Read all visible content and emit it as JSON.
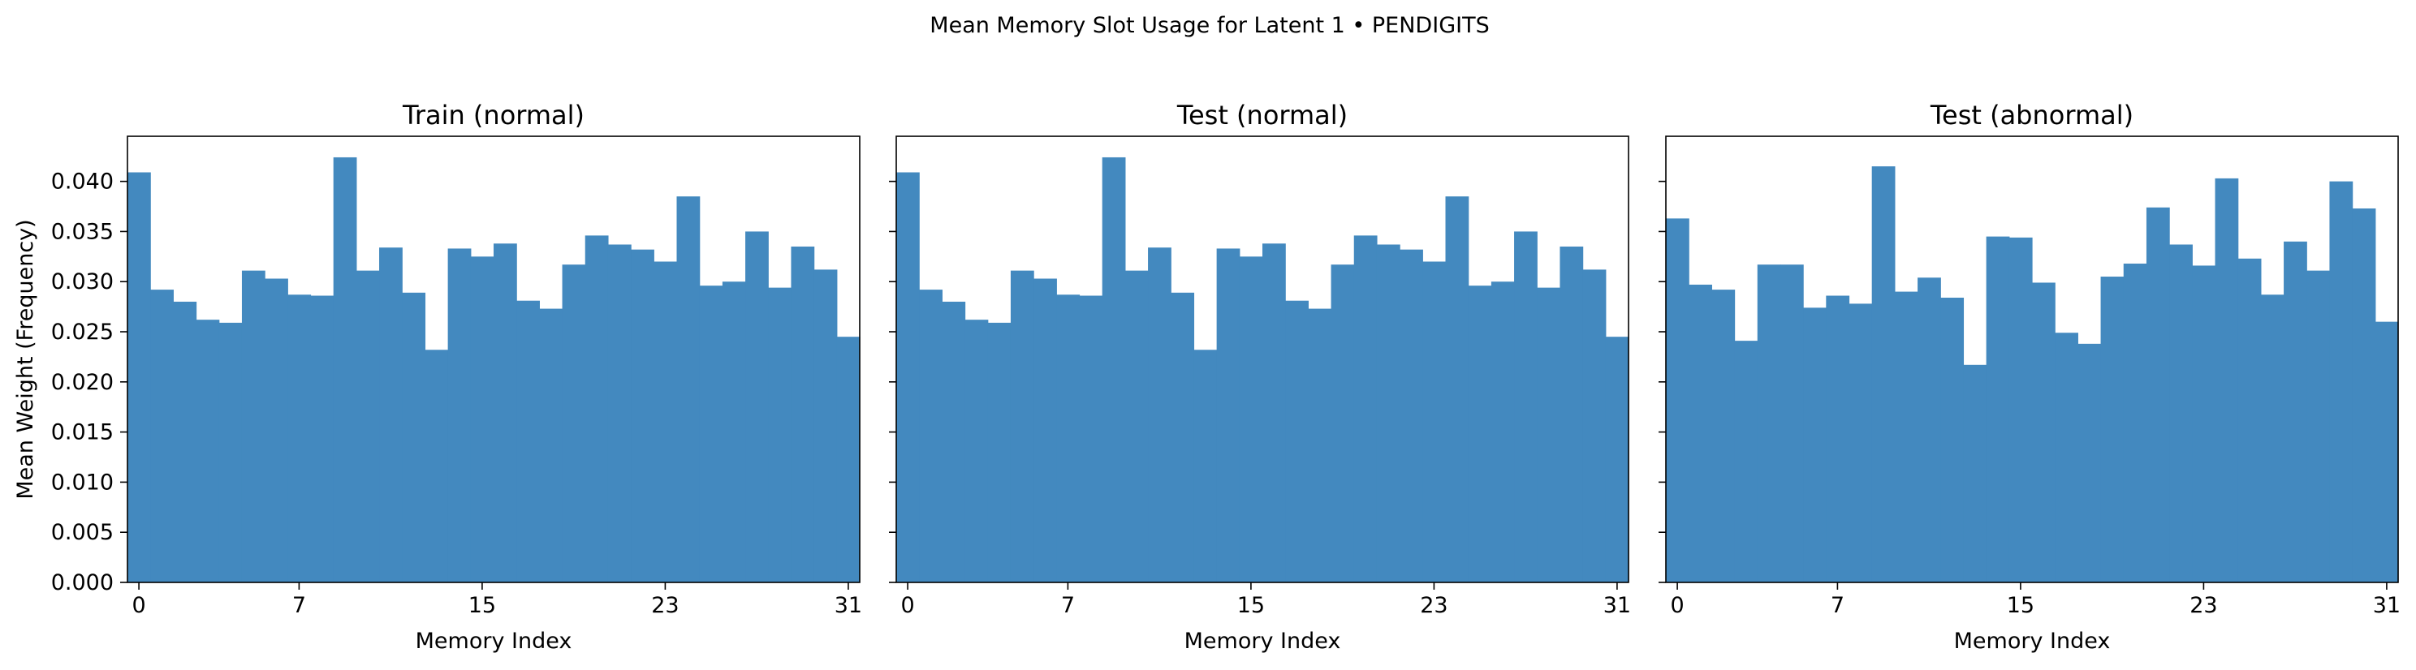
{
  "title": "Mean Memory Slot Usage for Latent 1 • PENDIGITS",
  "colors": {
    "bar": "#4389bf",
    "axis": "#000000",
    "background": "#ffffff"
  },
  "chart_data": [
    {
      "type": "bar",
      "title": "Train (normal)",
      "xlabel": "Memory Index",
      "ylabel": "Mean Weight (Frequency)",
      "xlim": [
        -0.5,
        31.5
      ],
      "ylim": [
        0,
        0.0445
      ],
      "xticks": [
        0,
        7,
        15,
        23,
        31
      ],
      "yticks": [
        0.0,
        0.005,
        0.01,
        0.015,
        0.02,
        0.025,
        0.03,
        0.035,
        0.04
      ],
      "x": [
        0,
        1,
        2,
        3,
        4,
        5,
        6,
        7,
        8,
        9,
        10,
        11,
        12,
        13,
        14,
        15,
        16,
        17,
        18,
        19,
        20,
        21,
        22,
        23,
        24,
        25,
        26,
        27,
        28,
        29,
        30,
        31
      ],
      "values": [
        0.0409,
        0.0292,
        0.028,
        0.0262,
        0.0259,
        0.0311,
        0.0303,
        0.0287,
        0.0286,
        0.0424,
        0.0311,
        0.0334,
        0.0289,
        0.0232,
        0.0333,
        0.0325,
        0.0338,
        0.0281,
        0.0273,
        0.0317,
        0.0346,
        0.0337,
        0.0332,
        0.032,
        0.0385,
        0.0296,
        0.03,
        0.035,
        0.0294,
        0.0335,
        0.0312,
        0.0245
      ],
      "grid": false,
      "legend": "none"
    },
    {
      "type": "bar",
      "title": "Test (normal)",
      "xlabel": "Memory Index",
      "ylabel": "",
      "xlim": [
        -0.5,
        31.5
      ],
      "ylim": [
        0,
        0.0445
      ],
      "xticks": [
        0,
        7,
        15,
        23,
        31
      ],
      "yticks": [
        0.0,
        0.005,
        0.01,
        0.015,
        0.02,
        0.025,
        0.03,
        0.035,
        0.04
      ],
      "x": [
        0,
        1,
        2,
        3,
        4,
        5,
        6,
        7,
        8,
        9,
        10,
        11,
        12,
        13,
        14,
        15,
        16,
        17,
        18,
        19,
        20,
        21,
        22,
        23,
        24,
        25,
        26,
        27,
        28,
        29,
        30,
        31
      ],
      "values": [
        0.0409,
        0.0292,
        0.028,
        0.0262,
        0.0259,
        0.0311,
        0.0303,
        0.0287,
        0.0286,
        0.0424,
        0.0311,
        0.0334,
        0.0289,
        0.0232,
        0.0333,
        0.0325,
        0.0338,
        0.0281,
        0.0273,
        0.0317,
        0.0346,
        0.0337,
        0.0332,
        0.032,
        0.0385,
        0.0296,
        0.03,
        0.035,
        0.0294,
        0.0335,
        0.0312,
        0.0245
      ],
      "grid": false,
      "legend": "none"
    },
    {
      "type": "bar",
      "title": "Test (abnormal)",
      "xlabel": "Memory Index",
      "ylabel": "",
      "xlim": [
        -0.5,
        31.5
      ],
      "ylim": [
        0,
        0.0445
      ],
      "xticks": [
        0,
        7,
        15,
        23,
        31
      ],
      "yticks": [
        0.0,
        0.005,
        0.01,
        0.015,
        0.02,
        0.025,
        0.03,
        0.035,
        0.04
      ],
      "x": [
        0,
        1,
        2,
        3,
        4,
        5,
        6,
        7,
        8,
        9,
        10,
        11,
        12,
        13,
        14,
        15,
        16,
        17,
        18,
        19,
        20,
        21,
        22,
        23,
        24,
        25,
        26,
        27,
        28,
        29,
        30,
        31
      ],
      "values": [
        0.0363,
        0.0297,
        0.0292,
        0.0241,
        0.0317,
        0.0317,
        0.0274,
        0.0286,
        0.0278,
        0.0415,
        0.029,
        0.0304,
        0.0284,
        0.0217,
        0.0345,
        0.0344,
        0.0299,
        0.0249,
        0.0238,
        0.0305,
        0.0318,
        0.0374,
        0.0337,
        0.0316,
        0.0403,
        0.0323,
        0.0287,
        0.034,
        0.0311,
        0.04,
        0.0373,
        0.026
      ],
      "grid": false,
      "legend": "none"
    }
  ]
}
